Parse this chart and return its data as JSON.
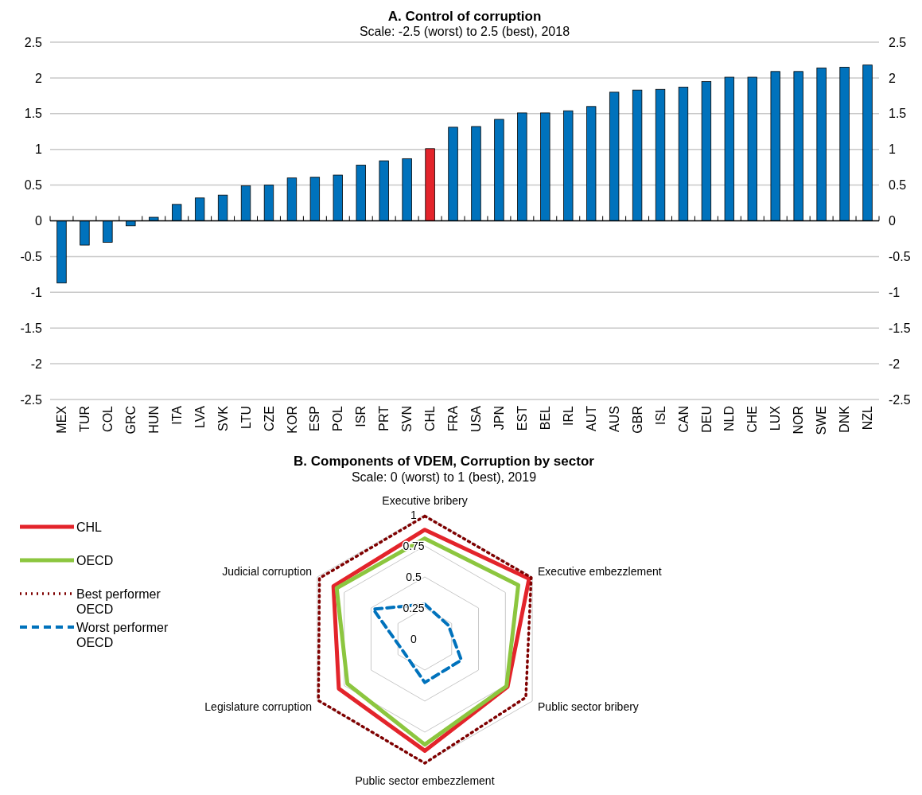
{
  "chart_data": [
    {
      "type": "bar",
      "title": "A. Control of corruption",
      "subtitle": "Scale: -2.5 (worst) to 2.5 (best), 2018",
      "categories": [
        "MEX",
        "TUR",
        "COL",
        "GRC",
        "HUN",
        "ITA",
        "LVA",
        "SVK",
        "LTU",
        "CZE",
        "KOR",
        "ESP",
        "POL",
        "ISR",
        "PRT",
        "SVN",
        "CHL",
        "FRA",
        "USA",
        "JPN",
        "EST",
        "BEL",
        "IRL",
        "AUT",
        "AUS",
        "GBR",
        "ISL",
        "CAN",
        "DEU",
        "NLD",
        "CHE",
        "LUX",
        "NOR",
        "SWE",
        "DNK",
        "NZL"
      ],
      "values": [
        -0.87,
        -0.34,
        -0.3,
        -0.07,
        0.05,
        0.23,
        0.32,
        0.36,
        0.49,
        0.5,
        0.6,
        0.61,
        0.64,
        0.78,
        0.84,
        0.87,
        1.01,
        1.31,
        1.32,
        1.42,
        1.51,
        1.51,
        1.54,
        1.6,
        1.8,
        1.83,
        1.84,
        1.87,
        1.95,
        2.01,
        2.01,
        2.09,
        2.09,
        2.14,
        2.15,
        2.18
      ],
      "colors": [
        "#0072bc",
        "#0072bc",
        "#0072bc",
        "#0072bc",
        "#0072bc",
        "#0072bc",
        "#0072bc",
        "#0072bc",
        "#0072bc",
        "#0072bc",
        "#0072bc",
        "#0072bc",
        "#0072bc",
        "#0072bc",
        "#0072bc",
        "#0072bc",
        "#e3242b",
        "#0072bc",
        "#0072bc",
        "#0072bc",
        "#0072bc",
        "#0072bc",
        "#0072bc",
        "#0072bc",
        "#0072bc",
        "#0072bc",
        "#0072bc",
        "#0072bc",
        "#0072bc",
        "#0072bc",
        "#0072bc",
        "#0072bc",
        "#0072bc",
        "#0072bc",
        "#0072bc",
        "#0072bc"
      ],
      "ylim": [
        -2.5,
        2.5
      ],
      "yticks": [
        -2.5,
        -2,
        -1.5,
        -1,
        -0.5,
        0,
        0.5,
        1,
        1.5,
        2,
        2.5
      ],
      "y2lim": [
        -2.5,
        2.5
      ],
      "y2ticks": [
        -2.5,
        -2,
        -1.5,
        -1,
        -0.5,
        0,
        0.5,
        1,
        1.5,
        2,
        2.5
      ],
      "grid": "y",
      "legend": false
    },
    {
      "type": "radar",
      "title": "B. Components of VDEM, Corruption by sector",
      "subtitle": "Scale: 0 (worst) to 1 (best), 2019",
      "categories": [
        "Executive bribery",
        "Executive embezzlement",
        "Public sector bribery",
        "Public sector embezzlement",
        "Legislature corruption",
        "Judicial corruption"
      ],
      "ylim": [
        0,
        1
      ],
      "yticks": [
        0,
        0.25,
        0.5,
        0.75,
        1
      ],
      "legend": "left",
      "series": [
        {
          "name": "CHL",
          "color": "#e3242b",
          "line_style": "solid",
          "values": [
            0.88,
            0.97,
            0.77,
            0.9,
            0.8,
            0.85
          ]
        },
        {
          "name": "OECD",
          "color": "#8cc63f",
          "line_style": "solid",
          "values": [
            0.81,
            0.87,
            0.76,
            0.85,
            0.72,
            0.82
          ]
        },
        {
          "name": "Best performer OECD",
          "color": "#7f0000",
          "line_style": "dotted",
          "values": [
            0.99,
            0.99,
            0.94,
            1.0,
            0.99,
            0.98
          ]
        },
        {
          "name": "Worst performer OECD",
          "color": "#0072bc",
          "line_style": "dashed",
          "values": [
            0.28,
            0.22,
            0.34,
            0.35,
            0.2,
            0.48
          ]
        }
      ]
    }
  ]
}
